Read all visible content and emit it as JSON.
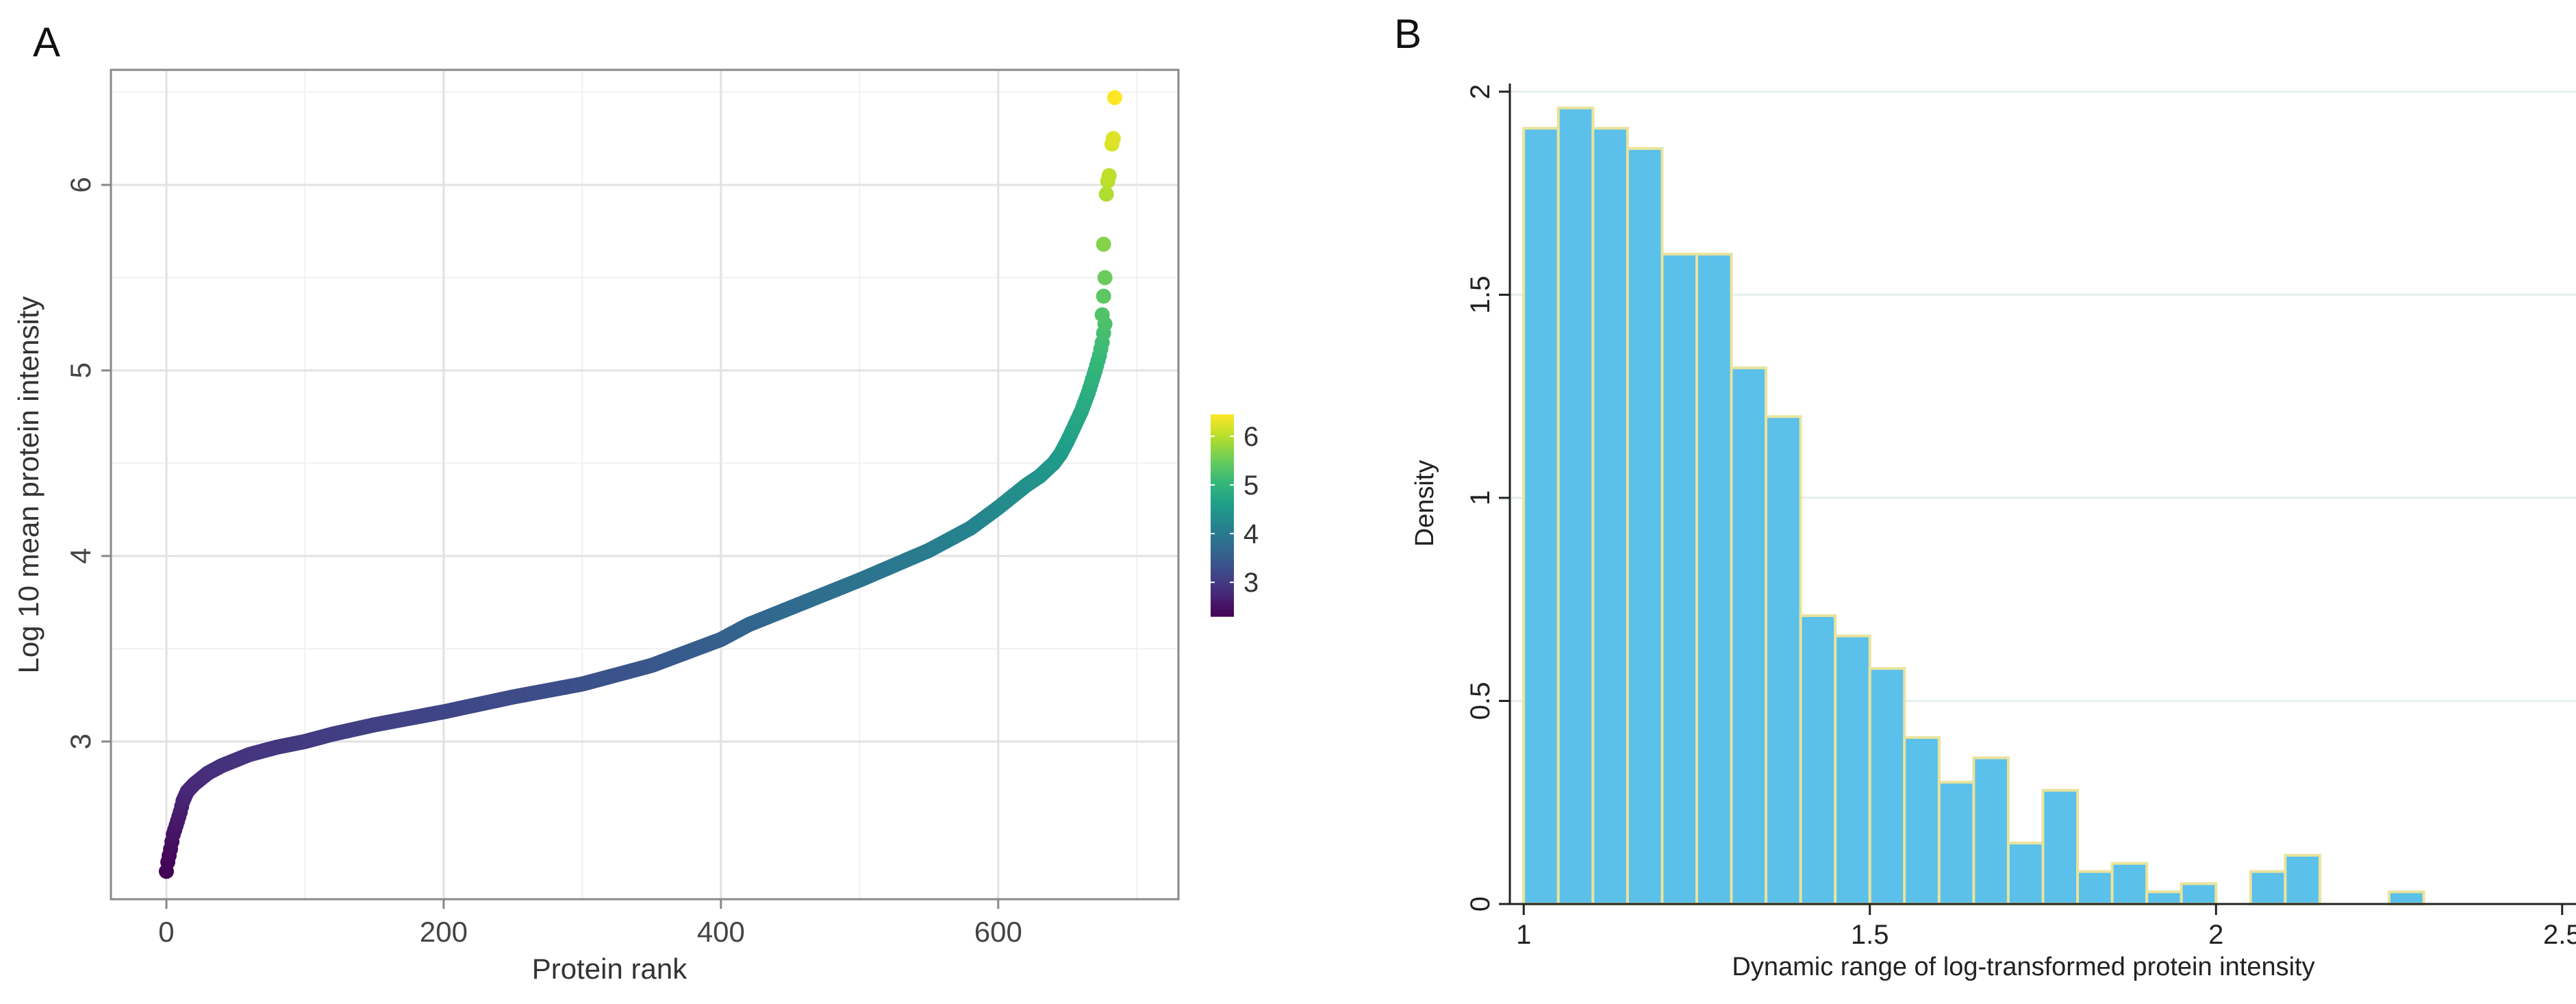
{
  "panels": {
    "a": {
      "letter": "A"
    },
    "b": {
      "letter": "B"
    }
  },
  "chart_data": [
    {
      "id": "A",
      "type": "scatter",
      "title": "",
      "xlabel": "Protein rank",
      "ylabel": "Log 10 mean protein intensity",
      "xlim": [
        -40,
        730
      ],
      "ylim": [
        2.15,
        6.62
      ],
      "xticks": [
        0,
        200,
        400,
        600
      ],
      "yticks": [
        3,
        4,
        5,
        6
      ],
      "x_minor": [
        100,
        300,
        500,
        700
      ],
      "y_minor": [
        3.5,
        4.5,
        5.5,
        6.5
      ],
      "grid": true,
      "colorscale": "viridis",
      "color_range": [
        2.3,
        6.45
      ],
      "colorbar": {
        "ticks": [
          3,
          4,
          5,
          6
        ]
      },
      "curve": {
        "x": [
          0,
          1,
          3,
          5,
          8,
          10,
          12,
          15,
          20,
          25,
          30,
          40,
          50,
          60,
          70,
          80,
          100,
          120,
          150,
          200,
          250,
          300,
          350,
          400,
          420,
          450,
          500,
          550,
          580,
          600,
          610,
          620,
          630,
          640,
          645,
          650,
          655,
          660,
          665,
          670,
          673,
          675,
          677
        ],
        "y": [
          2.3,
          2.35,
          2.42,
          2.5,
          2.57,
          2.62,
          2.68,
          2.73,
          2.77,
          2.8,
          2.83,
          2.87,
          2.9,
          2.93,
          2.95,
          2.97,
          3.0,
          3.04,
          3.09,
          3.16,
          3.24,
          3.31,
          3.41,
          3.55,
          3.63,
          3.72,
          3.87,
          4.03,
          4.15,
          4.26,
          4.32,
          4.38,
          4.43,
          4.5,
          4.55,
          4.62,
          4.7,
          4.78,
          4.88,
          5.0,
          5.08,
          5.15,
          5.25
        ]
      },
      "extra_points": [
        [
          675,
          5.3
        ],
        [
          676,
          5.4
        ],
        [
          677,
          5.5
        ],
        [
          676,
          5.68
        ],
        [
          678,
          5.95
        ],
        [
          679,
          6.02
        ],
        [
          680,
          6.05
        ],
        [
          682,
          6.22
        ],
        [
          683,
          6.25
        ],
        [
          684,
          6.47
        ]
      ]
    },
    {
      "id": "B",
      "type": "bar",
      "title": "",
      "xlabel": "Dynamic range of log-transformed protein intensity",
      "ylabel": "Density",
      "xlim": [
        0.98,
        2.52
      ],
      "ylim": [
        0,
        2.02
      ],
      "xticks": [
        1,
        1.5,
        2,
        2.5
      ],
      "yticks": [
        0,
        0.5,
        1,
        1.5,
        2
      ],
      "grid": true,
      "bin_width": 0.05,
      "bin_start": 1.0,
      "values": [
        1.91,
        1.96,
        1.91,
        1.86,
        1.6,
        1.6,
        1.32,
        1.2,
        0.71,
        0.66,
        0.58,
        0.41,
        0.3,
        0.36,
        0.15,
        0.28,
        0.08,
        0.1,
        0.03,
        0.05,
        0.0,
        0.08,
        0.12,
        0.0,
        0.0,
        0.03
      ],
      "bar_color": "#5bc0ea",
      "edge_color": "#e9e39d"
    }
  ]
}
